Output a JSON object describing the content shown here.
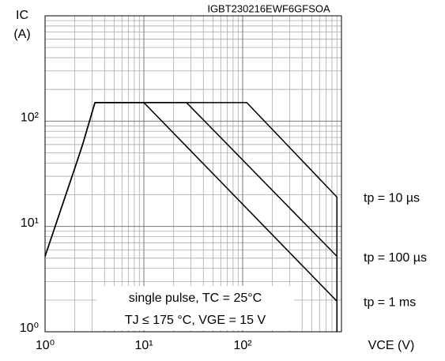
{
  "chart_data": {
    "type": "line",
    "title": "IGBT230216EWF6GFSOA",
    "x_label": "VCE (V)",
    "y_label": "IC",
    "y_unit": "(A)",
    "annotation": [
      "single pulse, TC = 25°C",
      "TJ ≤ 175 °C, VGE = 15 V"
    ],
    "log_x": true,
    "log_y": true,
    "grid": true,
    "color": "#000000",
    "xlim": [
      1,
      1000
    ],
    "ylim": [
      1,
      1000
    ],
    "xticks": [
      {
        "value": 1,
        "label": "10⁰"
      },
      {
        "value": 10,
        "label": "10¹"
      },
      {
        "value": 100,
        "label": "10²"
      }
    ],
    "yticks": [
      {
        "value": 1,
        "label": "10⁰"
      },
      {
        "value": 10,
        "label": "10¹"
      },
      {
        "value": 100,
        "label": "10²"
      }
    ],
    "series": [
      {
        "name": "tp = 10 µs",
        "x": [
          1,
          2.1,
          2.4,
          3.2,
          110,
          900,
          900
        ],
        "values": [
          5.2,
          41,
          60,
          150,
          150,
          19,
          1
        ]
      },
      {
        "name": "tp = 100 µs",
        "x": [
          1,
          2.1,
          2.4,
          3.2,
          27,
          900,
          900
        ],
        "values": [
          5.2,
          41,
          60,
          150,
          150,
          5.2,
          1
        ]
      },
      {
        "name": "tp = 1 ms",
        "x": [
          1,
          2.1,
          2.4,
          3.2,
          10,
          900,
          900
        ],
        "values": [
          5.2,
          41,
          60,
          150,
          150,
          1.95,
          1
        ]
      }
    ]
  }
}
